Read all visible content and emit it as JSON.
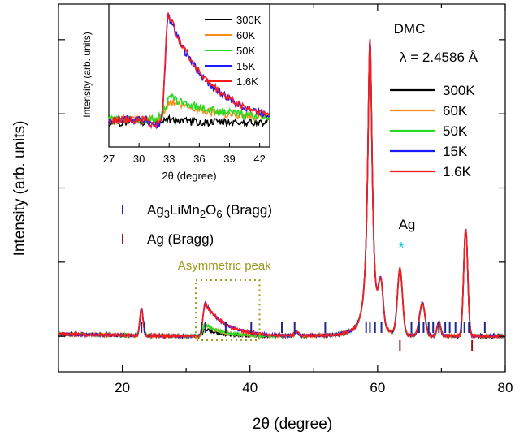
{
  "chart_data": [
    {
      "type": "line",
      "xlabel": "2θ (degree)",
      "ylabel": "Intensity (arb. units)",
      "xlim": [
        10,
        80
      ],
      "ylim": [
        -0.12,
        1.12
      ],
      "xticks": [
        20,
        40,
        60,
        80
      ],
      "yticks_labeled": false,
      "grid": false,
      "legend_position": "right, below annotation",
      "annotation_title": "DMC",
      "annotation_wavelength": "λ = 2.4586 Å",
      "annotation_ag": "Ag",
      "annotation_star": "*",
      "box_label": "Asymmetric peak",
      "box_range_x": [
        31.5,
        41.5
      ],
      "bragg_legend": [
        {
          "name_main": "Ag",
          "name_sub1": "3",
          "name_mid": "LiMn",
          "name_sub2": "2",
          "name_o": "O",
          "name_sub3": "6",
          "name_tail": " (Bragg)",
          "color": "#1f2a8a"
        },
        {
          "name_full": "Ag (Bragg)",
          "color": "#8b1c1c"
        }
      ],
      "bragg_ticks_Ag3LiMn2O6": [
        23.0,
        23.5,
        32.4,
        33.0,
        36.2,
        40.2,
        45.0,
        47.0,
        51.8,
        58.2,
        58.8,
        59.6,
        60.6,
        65.3,
        66.5,
        67.2,
        68.0,
        68.7,
        69.6,
        70.6,
        71.3,
        72.2,
        73.1,
        73.6,
        74.3,
        76.8
      ],
      "bragg_ticks_Ag": [
        63.5,
        74.8
      ],
      "peaks_in_data_units": {
        "baseline": 0.0,
        "peak_23": 0.09,
        "peak_33_high_T": 0.04,
        "peak_33_low_T": 0.11,
        "peak_47": 0.015,
        "peak_58_8": 1.0,
        "shoulder_60_6": 0.14,
        "peak_63_5": 0.22,
        "peak_67": 0.11,
        "peak_69_6": 0.045,
        "peak_73_8": 0.36
      },
      "series": [
        {
          "name": "300K",
          "color": "#000000"
        },
        {
          "name": "60K",
          "color": "#ff8c1a"
        },
        {
          "name": "50K",
          "color": "#22dd22"
        },
        {
          "name": "15K",
          "color": "#1a1aff"
        },
        {
          "name": "1.6K",
          "color": "#ff1a1a"
        }
      ]
    },
    {
      "type": "line",
      "xlabel": "2θ (degree)",
      "ylabel": "Intensity (arb. units)",
      "xlim": [
        27,
        43
      ],
      "xticks": [
        27,
        30,
        33,
        36,
        39,
        42
      ],
      "ylim": [
        0,
        1
      ],
      "peak_center": 32.9,
      "series": [
        {
          "name": "300K",
          "color": "#000000",
          "peak_height": 0.05
        },
        {
          "name": "60K",
          "color": "#ff8c1a",
          "peak_height": 0.2
        },
        {
          "name": "50K",
          "color": "#22dd22",
          "peak_height": 0.24
        },
        {
          "name": "15K",
          "color": "#1a1aff",
          "peak_height": 0.98
        },
        {
          "name": "1.6K",
          "color": "#ff1a1a",
          "peak_height": 1.0
        }
      ]
    }
  ]
}
